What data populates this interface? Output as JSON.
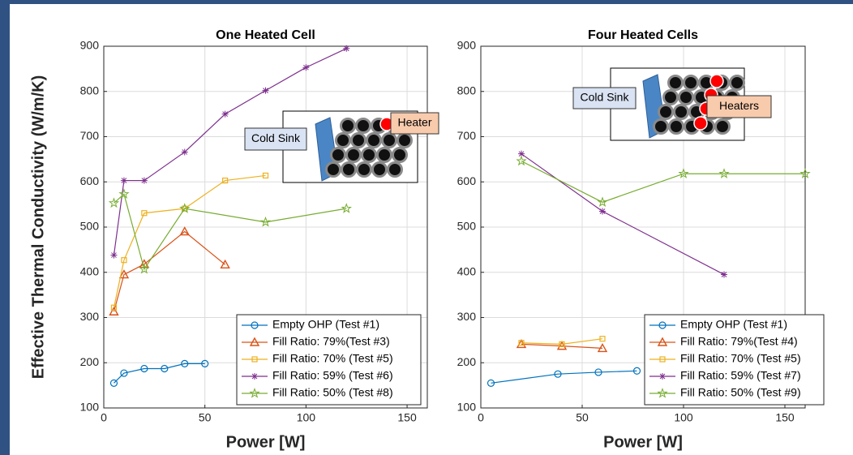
{
  "chart_data": [
    {
      "type": "line",
      "title": "One Heated Cell",
      "xlabel": "Power [W]",
      "ylabel": "Effective Thermal Conductivity (W/m/K)",
      "xlim": [
        0,
        160
      ],
      "ylim": [
        100,
        900
      ],
      "xticks": [
        0,
        50,
        100,
        150
      ],
      "yticks": [
        100,
        200,
        300,
        400,
        500,
        600,
        700,
        800,
        900
      ],
      "grid": true,
      "legend": "lower right",
      "inset_labels": [
        "Cold Sink",
        "Heater"
      ],
      "series": [
        {
          "name": "Empty OHP (Test #1)",
          "color": "#0072BD",
          "marker": "circle",
          "x": [
            5,
            10,
            20,
            30,
            40,
            50
          ],
          "values": [
            155,
            177,
            187,
            187,
            198,
            198
          ]
        },
        {
          "name": "Fill Ratio: 79%(Test #3)",
          "color": "#D95319",
          "marker": "triangle",
          "x": [
            5,
            10,
            20,
            40,
            60
          ],
          "values": [
            313,
            395,
            418,
            490,
            417
          ]
        },
        {
          "name": "Fill Ratio: 70% (Test #5)",
          "color": "#EDB120",
          "marker": "square",
          "x": [
            5,
            10,
            20,
            40,
            60,
            80
          ],
          "values": [
            322,
            427,
            531,
            541,
            603,
            614
          ]
        },
        {
          "name": "Fill Ratio: 59% (Test #6)",
          "color": "#7E2F8E",
          "marker": "asterisk",
          "x": [
            5,
            10,
            20,
            40,
            60,
            80,
            100,
            120
          ],
          "values": [
            438,
            603,
            603,
            666,
            750,
            802,
            853,
            895
          ]
        },
        {
          "name": "Fill Ratio: 50% (Test #8)",
          "color": "#77AC30",
          "marker": "pentagram",
          "x": [
            5,
            10,
            20,
            40,
            80,
            120
          ],
          "values": [
            553,
            573,
            407,
            541,
            511,
            541
          ]
        }
      ]
    },
    {
      "type": "line",
      "title": "Four Heated Cells",
      "xlabel": "Power [W]",
      "xlim": [
        0,
        160
      ],
      "ylim": [
        100,
        900
      ],
      "xticks": [
        0,
        50,
        100,
        150
      ],
      "yticks": [
        100,
        200,
        300,
        400,
        500,
        600,
        700,
        800,
        900
      ],
      "grid": true,
      "legend": "lower right",
      "inset_labels": [
        "Cold Sink",
        "Heaters"
      ],
      "series": [
        {
          "name": "Empty OHP (Test #1)",
          "color": "#0072BD",
          "marker": "circle",
          "x": [
            5,
            38,
            58,
            77
          ],
          "values": [
            155,
            175,
            179,
            182
          ]
        },
        {
          "name": "Fill Ratio: 79%(Test #4)",
          "color": "#D95319",
          "marker": "triangle",
          "x": [
            20,
            40,
            60
          ],
          "values": [
            241,
            237,
            232
          ]
        },
        {
          "name": "Fill Ratio: 70% (Test #5)",
          "color": "#EDB120",
          "marker": "square",
          "x": [
            20,
            40,
            60
          ],
          "values": [
            244,
            241,
            253
          ]
        },
        {
          "name": "Fill Ratio: 59% (Test #7)",
          "color": "#7E2F8E",
          "marker": "asterisk",
          "x": [
            20,
            60,
            120
          ],
          "values": [
            662,
            535,
            395
          ]
        },
        {
          "name": "Fill Ratio: 50% (Test #9)",
          "color": "#77AC30",
          "marker": "pentagram",
          "x": [
            20,
            60,
            100,
            120,
            160
          ],
          "values": [
            646,
            555,
            618,
            618,
            618
          ]
        }
      ]
    }
  ]
}
